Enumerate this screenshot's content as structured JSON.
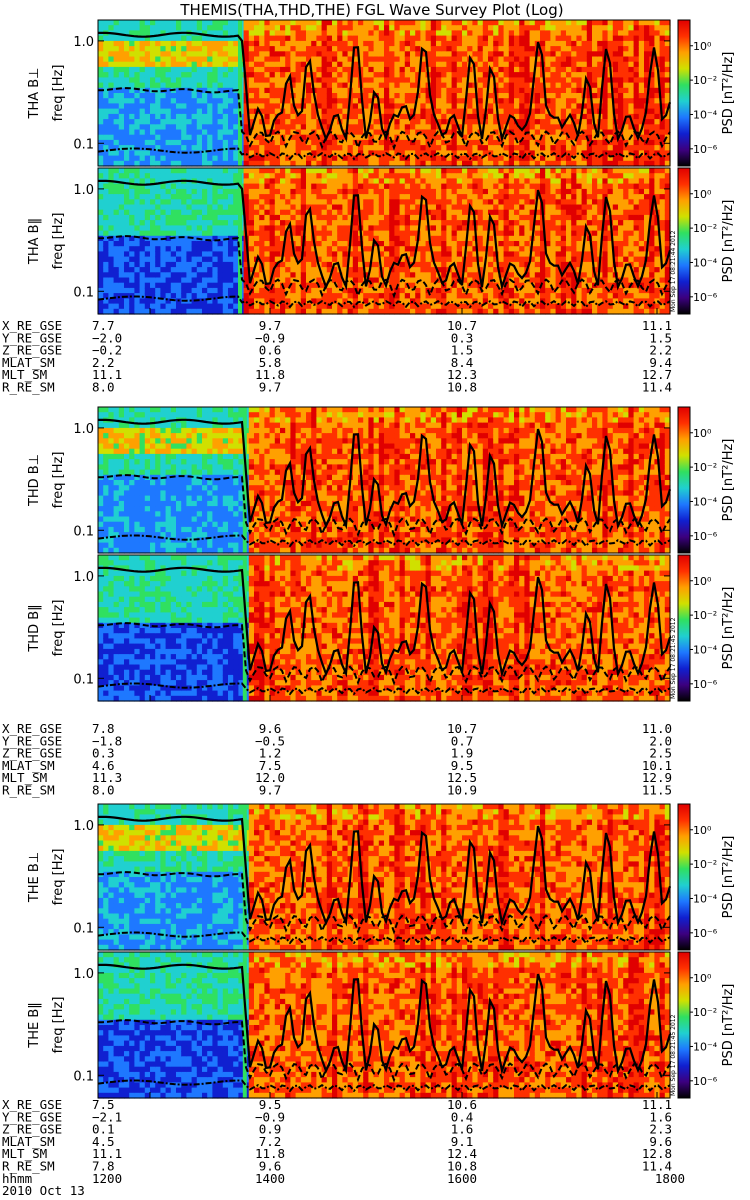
{
  "chart_data": {
    "type": "heatmap",
    "title": "THEMIS(THA,THD,THE) FGL Wave Survey Plot (Log)",
    "date_label": "2010 Oct 13",
    "ylabel_unit": "freq [Hz]",
    "yscale": "log",
    "ylim": [
      0.06,
      1.6
    ],
    "yticks": [
      "1.0",
      "0.1"
    ],
    "colorbar": {
      "label": "PSD [nT²/Hz]",
      "scale": "log",
      "tick_labels": [
        "10⁰",
        "10⁻²",
        "10⁻⁴",
        "10⁻⁶"
      ],
      "tick_exponents": [
        0,
        -2,
        -4,
        -6
      ],
      "range_exponents": [
        -7,
        1.5
      ]
    },
    "colors": {
      "background": "#ffffff",
      "frame": "#000000",
      "colormap": [
        "#000000",
        "#3c0080",
        "#1020d0",
        "#1e78ff",
        "#20d0d0",
        "#30e060",
        "#d0e000",
        "#ffa000",
        "#ff3000",
        "#e00000"
      ]
    },
    "time_axis": {
      "label": "hhmm",
      "tick_labels": [
        "1200",
        "1400",
        "1600",
        "1800"
      ],
      "values": [
        1200,
        1400,
        1600,
        1800
      ]
    },
    "stamps": [
      "Mon Sep 17 08:21:44 2012",
      "Mon Sep 17 08:21:45 2012",
      "Mon Sep 17 08:21:45 2012"
    ],
    "probes": [
      {
        "panels": [
          "THA B⊥",
          "THA B‖"
        ],
        "magnetopause_hhmm": 1350,
        "orbit": [
          {
            "name": "X_RE_GSE",
            "values": [
              "7.7",
              "9.7",
              "10.7",
              "11.1"
            ]
          },
          {
            "name": "Y_RE_GSE",
            "values": [
              "−2.0",
              "−0.9",
              "0.3",
              "1.5"
            ]
          },
          {
            "name": "Z_RE_GSE",
            "values": [
              "−0.2",
              "0.6",
              "1.5",
              "2.2"
            ]
          },
          {
            "name": "MLAT_SM",
            "values": [
              "2.2",
              "5.8",
              "8.4",
              "9.4"
            ]
          },
          {
            "name": "MLT_SM",
            "values": [
              "11.1",
              "11.8",
              "12.3",
              "12.7"
            ]
          },
          {
            "name": "R_RE_SM",
            "values": [
              "8.0",
              "9.7",
              "10.8",
              "11.4"
            ]
          }
        ]
      },
      {
        "panels": [
          "THD B⊥",
          "THD B‖"
        ],
        "magnetopause_hhmm": 1358,
        "orbit": [
          {
            "name": "X_RE_GSE",
            "values": [
              "7.8",
              "9.6",
              "10.7",
              "11.0"
            ]
          },
          {
            "name": "Y_RE_GSE",
            "values": [
              "−1.8",
              "−0.5",
              "0.7",
              "2.0"
            ]
          },
          {
            "name": "Z_RE_GSE",
            "values": [
              "0.3",
              "1.2",
              "1.9",
              "2.5"
            ]
          },
          {
            "name": "MLAT_SM",
            "values": [
              "4.6",
              "7.5",
              "9.5",
              "10.1"
            ]
          },
          {
            "name": "MLT_SM",
            "values": [
              "11.3",
              "12.0",
              "12.5",
              "12.9"
            ]
          },
          {
            "name": "R_RE_SM",
            "values": [
              "8.0",
              "9.7",
              "10.9",
              "11.5"
            ]
          }
        ]
      },
      {
        "panels": [
          "THE B⊥",
          "THE B‖"
        ],
        "magnetopause_hhmm": 1358,
        "orbit": [
          {
            "name": "X_RE_GSE",
            "values": [
              "7.5",
              "9.5",
              "10.6",
              "11.1"
            ]
          },
          {
            "name": "Y_RE_GSE",
            "values": [
              "−2.1",
              "−0.9",
              "0.4",
              "1.6"
            ]
          },
          {
            "name": "Z_RE_GSE",
            "values": [
              "0.1",
              "0.9",
              "1.6",
              "2.3"
            ]
          },
          {
            "name": "MLAT_SM",
            "values": [
              "4.5",
              "7.2",
              "9.1",
              "9.6"
            ]
          },
          {
            "name": "MLT_SM",
            "values": [
              "11.1",
              "11.8",
              "12.4",
              "12.8"
            ]
          },
          {
            "name": "R_RE_SM",
            "values": [
              "7.8",
              "9.6",
              "10.8",
              "11.4"
            ]
          }
        ]
      }
    ]
  }
}
